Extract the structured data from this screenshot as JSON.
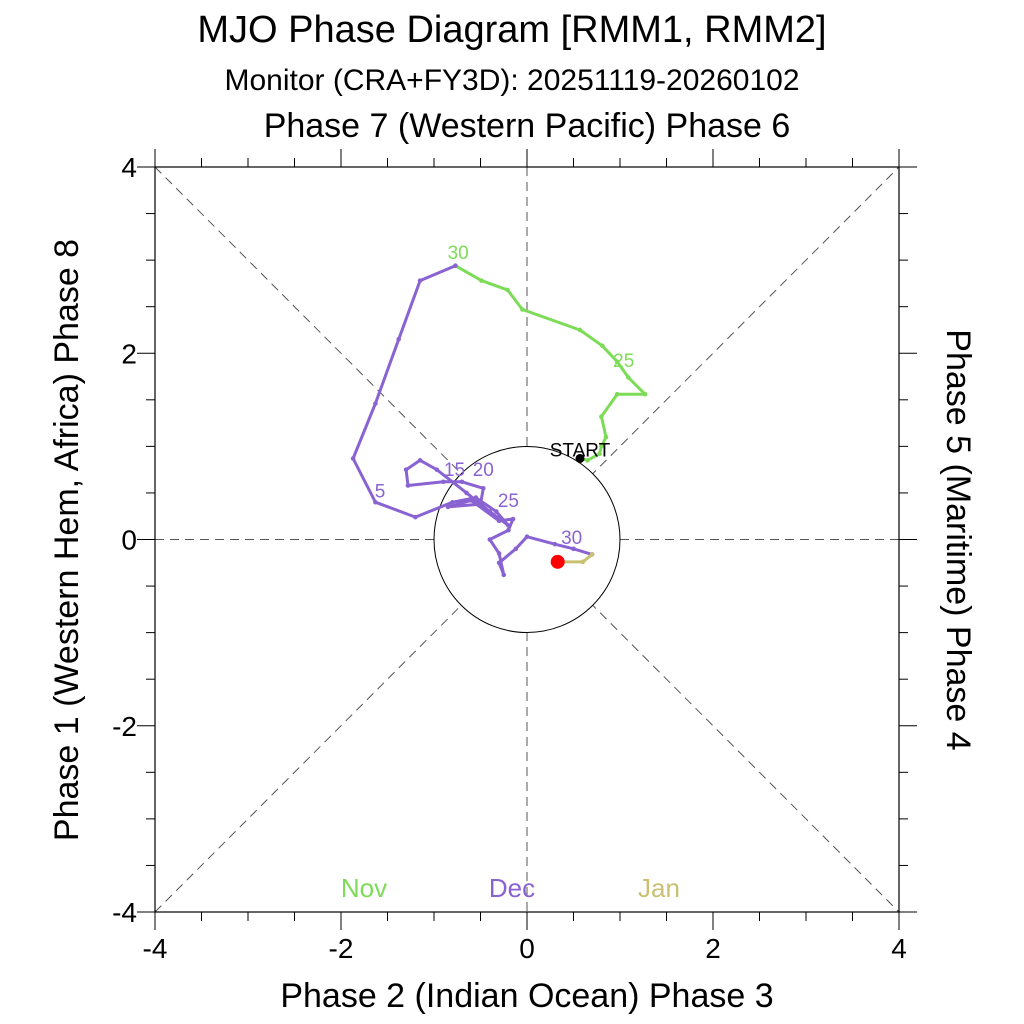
{
  "chart_data": {
    "type": "line",
    "title": "MJO Phase Diagram [RMM1, RMM2]",
    "subtitle": "Monitor (CRA+FY3D): 20251119-20260102",
    "top_label": "Phase 7 (Western Pacific) Phase 6",
    "xlabel": "Phase 2 (Indian Ocean) Phase 3",
    "ylabel_left": "Phase 1 (Western Hem, Africa) Phase 8",
    "ylabel_right": "Phase 5 (Maritime) Phase 4",
    "xlim": [
      -4,
      4
    ],
    "ylim": [
      -4,
      4
    ],
    "major_ticks": [
      -4,
      -2,
      0,
      2,
      4
    ],
    "minor_step": 0.5,
    "unit_circle_radius": 1,
    "start_label": "START",
    "series": [
      {
        "name": "Nov",
        "color": "#7ddc57",
        "points": [
          [
            0.57,
            0.87
          ],
          [
            0.65,
            0.85
          ],
          [
            0.78,
            0.92
          ],
          [
            0.8,
            1.0
          ],
          [
            0.85,
            1.1
          ],
          [
            0.8,
            1.32
          ],
          [
            0.97,
            1.56
          ],
          [
            1.27,
            1.56
          ],
          [
            1.09,
            1.74
          ],
          [
            0.97,
            1.91
          ],
          [
            0.81,
            2.08
          ],
          [
            0.57,
            2.25
          ],
          [
            -0.05,
            2.47
          ],
          [
            -0.21,
            2.68
          ],
          [
            -0.49,
            2.78
          ],
          [
            -0.77,
            2.94
          ]
        ]
      },
      {
        "name": "Dec",
        "color": "#8a63d2",
        "points": [
          [
            -0.77,
            2.94
          ],
          [
            -1.15,
            2.78
          ],
          [
            -1.38,
            2.15
          ],
          [
            -1.63,
            1.46
          ],
          [
            -1.87,
            0.87
          ],
          [
            -1.63,
            0.4
          ],
          [
            -1.2,
            0.24
          ],
          [
            -0.8,
            0.4
          ],
          [
            -0.55,
            0.45
          ],
          [
            -0.33,
            0.3
          ],
          [
            -0.2,
            0.15
          ],
          [
            -0.4,
            0.3
          ],
          [
            -0.65,
            0.5
          ],
          [
            -0.97,
            0.75
          ],
          [
            -1.15,
            0.85
          ],
          [
            -1.3,
            0.75
          ],
          [
            -1.28,
            0.58
          ],
          [
            -0.9,
            0.62
          ],
          [
            -0.7,
            0.62
          ],
          [
            -0.47,
            0.55
          ],
          [
            -0.5,
            0.38
          ],
          [
            -0.85,
            0.35
          ],
          [
            -0.6,
            0.42
          ],
          [
            -0.3,
            0.2
          ],
          [
            -0.15,
            0.22
          ],
          [
            -0.2,
            0.1
          ],
          [
            -0.4,
            0.0
          ],
          [
            -0.3,
            -0.15
          ],
          [
            -0.25,
            -0.38
          ],
          [
            -0.3,
            -0.25
          ],
          [
            -0.12,
            -0.1
          ],
          [
            0.0,
            0.03
          ],
          [
            0.3,
            -0.05
          ],
          [
            0.5,
            -0.1
          ],
          [
            0.7,
            -0.16
          ]
        ]
      },
      {
        "name": "Jan",
        "color": "#c9c071",
        "points": [
          [
            0.7,
            -0.16
          ],
          [
            0.6,
            -0.24
          ],
          [
            0.33,
            -0.24
          ]
        ]
      }
    ],
    "day_labels": [
      {
        "text": "30",
        "series": "Nov",
        "x": -0.74,
        "y": 3.01
      },
      {
        "text": "25",
        "series": "Nov",
        "x": 1.04,
        "y": 1.85
      },
      {
        "text": "5",
        "series": "Dec",
        "x": -1.58,
        "y": 0.45
      },
      {
        "text": "15",
        "series": "Dec",
        "x": -0.78,
        "y": 0.68
      },
      {
        "text": "20",
        "series": "Dec",
        "x": -0.47,
        "y": 0.68
      },
      {
        "text": "25",
        "series": "Dec",
        "x": -0.2,
        "y": 0.35
      },
      {
        "text": "30",
        "series": "Dec",
        "x": 0.48,
        "y": -0.05
      }
    ],
    "start_point": [
      0.57,
      0.87
    ],
    "end_point": [
      0.33,
      -0.24
    ],
    "end_marker_color": "#ff0000",
    "month_legend": [
      {
        "label": "Nov",
        "color": "#7ddc57"
      },
      {
        "label": "Dec",
        "color": "#8a63d2"
      },
      {
        "label": "Jan",
        "color": "#c9c071"
      }
    ]
  }
}
